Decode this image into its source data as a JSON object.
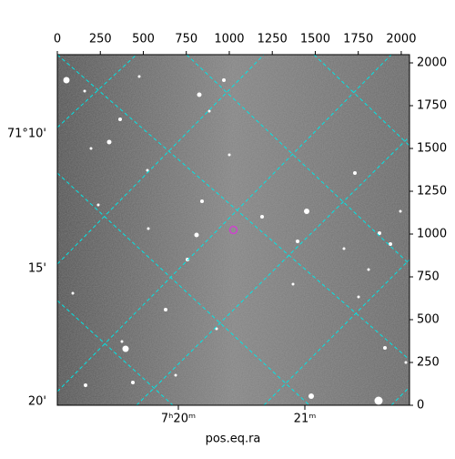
{
  "chart_data": {
    "type": "image",
    "xlim": [
      0,
      2048
    ],
    "xticks": [
      0,
      250,
      500,
      750,
      1000,
      1250,
      1500,
      1750,
      2000
    ],
    "ylim": [
      0,
      2048
    ],
    "yticks": [
      0,
      250,
      500,
      750,
      1000,
      1250,
      1500,
      1750,
      2000
    ],
    "x_label": "pos.eq.ra",
    "ra_tick_labels": [
      "7ʰ20ᵐ",
      "21ᵐ"
    ],
    "dec_tick_labels": [
      "71°10'",
      "15'",
      "20'"
    ],
    "marker": {
      "x": 1024,
      "y": 1024,
      "color": "#cc44cc"
    },
    "grid_color": "#00e5e5"
  }
}
